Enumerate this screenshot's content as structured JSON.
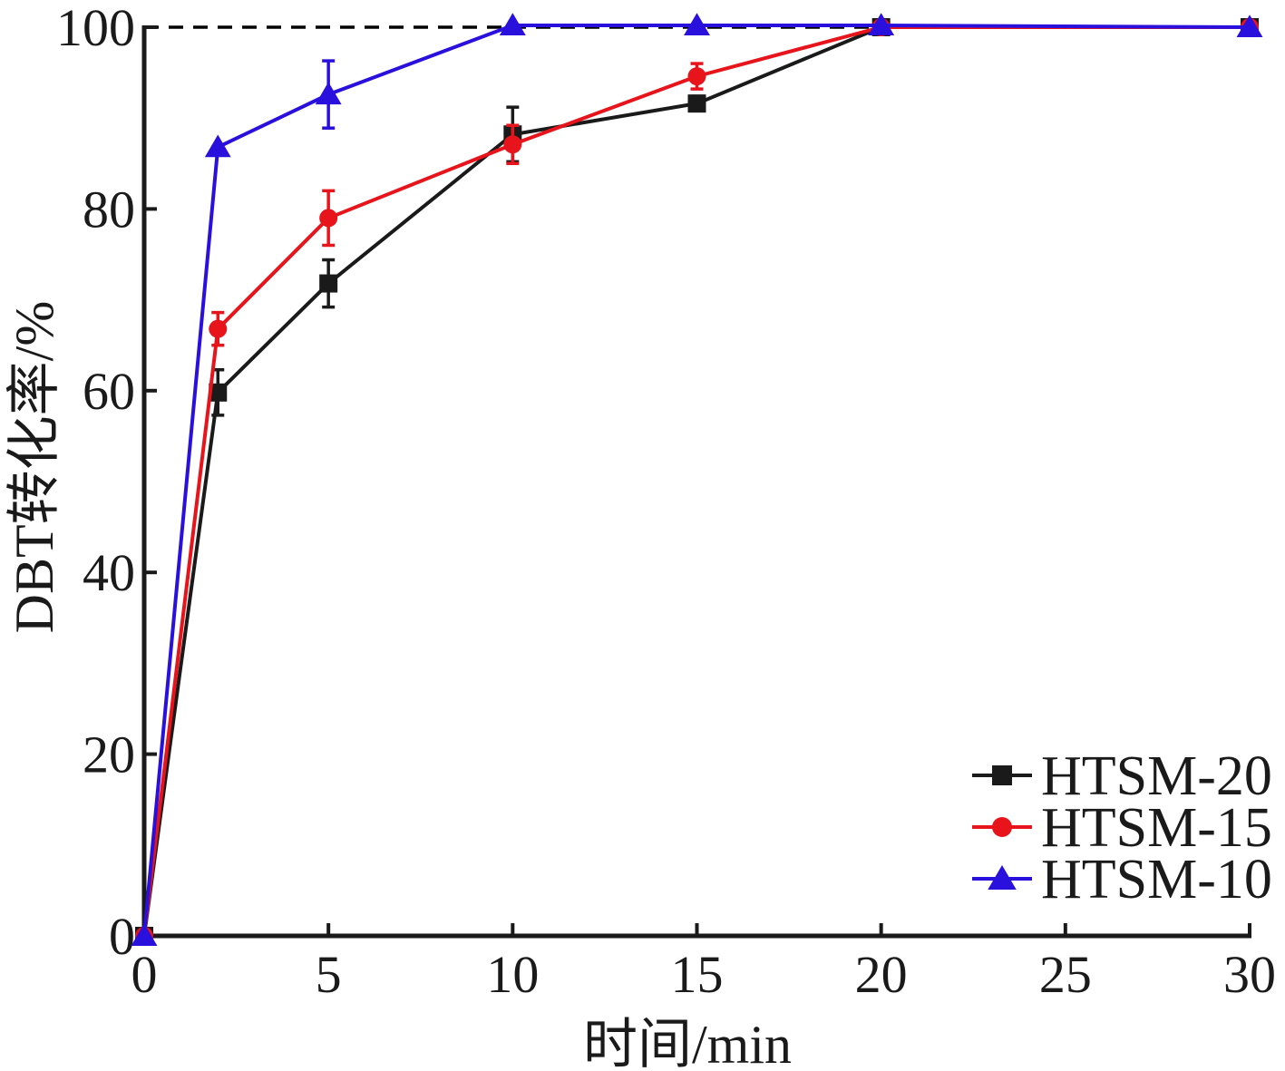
{
  "chart_data": {
    "type": "line",
    "xlabel": "时间/min",
    "ylabel": "DBT转化率/%",
    "xlim": [
      0,
      30
    ],
    "ylim": [
      0,
      100
    ],
    "xticks": [
      0,
      5,
      10,
      15,
      20,
      25,
      30
    ],
    "yticks": [
      0,
      20,
      40,
      60,
      80,
      100
    ],
    "grid": false,
    "legend_position": "bottom-right",
    "reference_line": {
      "y": 100,
      "style": "dashed",
      "color": "#000000"
    },
    "series": [
      {
        "name": "HTSM-20",
        "color": "#1a1a1a",
        "marker": "square",
        "x": [
          0,
          2,
          5,
          10,
          15,
          20,
          30
        ],
        "y": [
          0,
          59.8,
          71.8,
          88.2,
          91.6,
          100,
          100
        ],
        "error": [
          0,
          2.5,
          2.6,
          3.0,
          0.8,
          0,
          0
        ]
      },
      {
        "name": "HTSM-15",
        "color": "#e8141c",
        "marker": "circle",
        "x": [
          0,
          2,
          5,
          10,
          15,
          20,
          30
        ],
        "y": [
          0,
          66.8,
          79.0,
          87.1,
          94.6,
          100,
          100
        ],
        "error": [
          0,
          1.8,
          3.0,
          2.1,
          1.4,
          0,
          0
        ]
      },
      {
        "name": "HTSM-10",
        "color": "#2a10dd",
        "marker": "triangle",
        "x": [
          0,
          2,
          5,
          10,
          15,
          20,
          30
        ],
        "y": [
          0,
          86.8,
          92.6,
          100.2,
          100.2,
          100.2,
          100.0
        ],
        "error": [
          0,
          0,
          3.7,
          0,
          0,
          0,
          0
        ]
      }
    ]
  }
}
